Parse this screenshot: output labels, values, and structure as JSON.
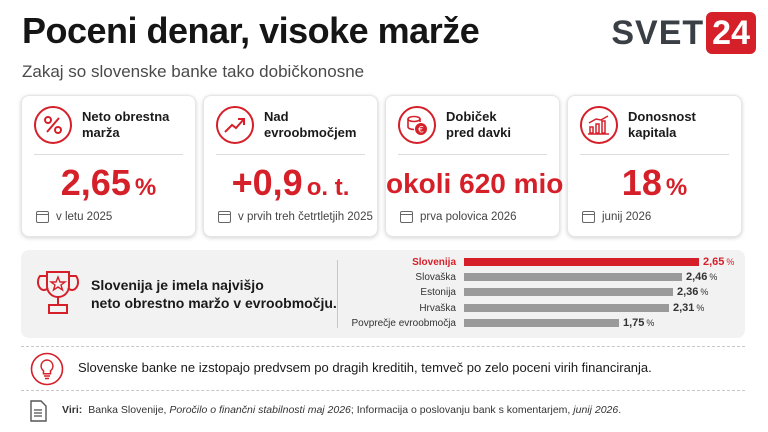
{
  "header": {
    "title": "Poceni denar, visoke marže",
    "subtitle": "Zakaj so slovenske banke tako dobičkonosne",
    "logo_text": "SVET",
    "logo_number": "24"
  },
  "cards": [
    {
      "label": "Neto obrestna marža",
      "value": "2,65",
      "unit": "%",
      "note": "v letu 2025",
      "icon": "percent-icon"
    },
    {
      "label": "Nad evroobmočjem",
      "value": "+0,9",
      "unit": "o. t.",
      "note": "v prvih treh četrtletjih 2025",
      "icon": "trend-up-icon"
    },
    {
      "label": "Dobiček pred davki",
      "value": "okoli 620 mio €",
      "unit": "",
      "note": "prva polovica 2026",
      "icon": "coins-icon"
    },
    {
      "label": "Donosnost kapitala",
      "value": "18",
      "unit": "%",
      "note": "junij 2026",
      "icon": "bar-growth-icon"
    }
  ],
  "panel": {
    "text_line1": "Slovenija je imela najvišjo",
    "text_line2": "neto obrestno maržo v evroobmočju."
  },
  "chart_data": {
    "type": "bar",
    "orientation": "horizontal",
    "categories": [
      "Slovenija",
      "Slovaška",
      "Estonija",
      "Hrvaška",
      "Povprečje evroobmočja"
    ],
    "values": [
      2.65,
      2.46,
      2.36,
      2.31,
      1.75
    ],
    "value_labels": [
      "2,65",
      "2,46",
      "2,36",
      "2,31",
      "1,75"
    ],
    "unit": "%",
    "highlight_index": 0,
    "highlight_color": "#d5202a",
    "bar_color": "#9a9a9a",
    "xlim": [
      0,
      2.65
    ]
  },
  "insight": {
    "text": "Slovenske banke ne izstopajo predvsem po dragih kreditih, temveč po zelo poceni virih financiranja."
  },
  "sources": {
    "label": "Viri:",
    "part1": "Banka Slovenije, ",
    "part2_italic": "Poročilo o finančni stabilnosti maj 2026",
    "part3": "; Informacija o poslovanju bank s komentarjem, ",
    "part4_italic": "junij 2026",
    "part5": "."
  },
  "colors": {
    "accent": "#d5202a",
    "text": "#1a1a1a"
  }
}
